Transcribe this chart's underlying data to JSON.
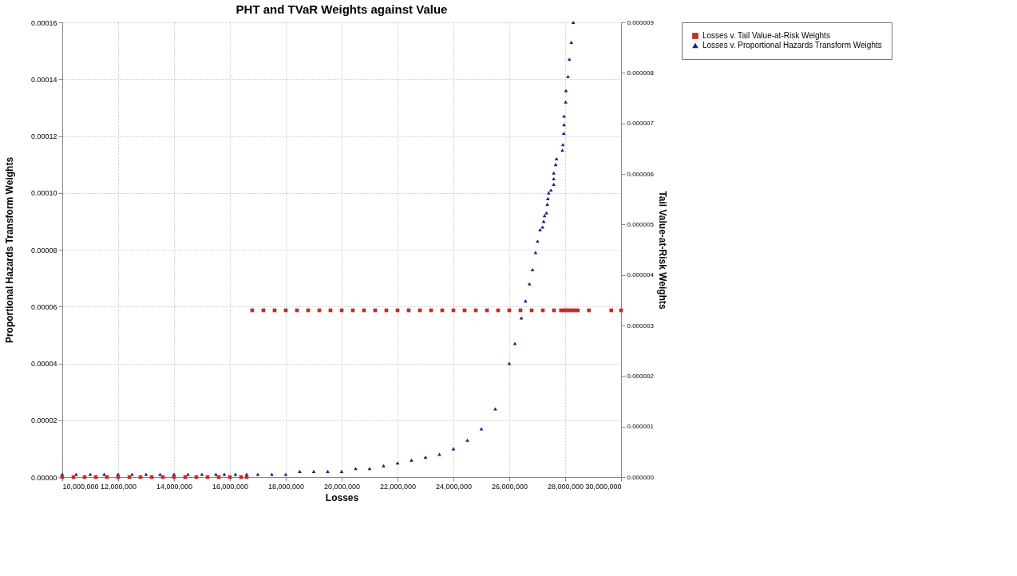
{
  "chart_data": {
    "type": "scatter",
    "title": "PHT and TVaR Weights against Value",
    "xlabel": "Losses",
    "ylabel": "Proportional Hazards Transform Weights",
    "y2label": "Tail Value-at-Risk Weights",
    "xlim": [
      10000000,
      30000000
    ],
    "xticks": [
      {
        "value": 10000000,
        "label": "10,000,000"
      },
      {
        "value": 12000000,
        "label": "12,000,000"
      },
      {
        "value": 14000000,
        "label": "14,000,000"
      },
      {
        "value": 16000000,
        "label": "16,000,000"
      },
      {
        "value": 18000000,
        "label": "18,000,000"
      },
      {
        "value": 20000000,
        "label": "20,000,000"
      },
      {
        "value": 22000000,
        "label": "22,000,000"
      },
      {
        "value": 24000000,
        "label": "24,000,000"
      },
      {
        "value": 26000000,
        "label": "26,000,000"
      },
      {
        "value": 28000000,
        "label": "28,000,000"
      },
      {
        "value": 30000000,
        "label": "30,000,000"
      }
    ],
    "ylim": [
      0,
      0.00016
    ],
    "yticks": [
      {
        "value": 0,
        "label": "0.00000"
      },
      {
        "value": 2e-05,
        "label": "0.00002"
      },
      {
        "value": 4e-05,
        "label": "0.00004"
      },
      {
        "value": 6e-05,
        "label": "0.00006"
      },
      {
        "value": 8e-05,
        "label": "0.00008"
      },
      {
        "value": 0.0001,
        "label": "0.00010"
      },
      {
        "value": 0.00012,
        "label": "0.00012"
      },
      {
        "value": 0.00014,
        "label": "0.00014"
      },
      {
        "value": 0.00016,
        "label": "0.00016"
      }
    ],
    "y2lim": [
      0,
      9e-06
    ],
    "y2ticks": [
      {
        "value": 0,
        "label": "0.000000"
      },
      {
        "value": 1e-06,
        "label": "0.000001"
      },
      {
        "value": 2e-06,
        "label": "0.000002"
      },
      {
        "value": 3e-06,
        "label": "0.000003"
      },
      {
        "value": 4e-06,
        "label": "0.000004"
      },
      {
        "value": 5e-06,
        "label": "0.000005"
      },
      {
        "value": 6e-06,
        "label": "0.000006"
      },
      {
        "value": 7e-06,
        "label": "0.000007"
      },
      {
        "value": 8e-06,
        "label": "0.000008"
      },
      {
        "value": 9e-06,
        "label": "0.000009"
      }
    ],
    "grid": true,
    "legend": "right",
    "series": [
      {
        "name": "Losses v. Tail Value-at-Risk Weights",
        "color": "#c0302a",
        "marker": "square",
        "axis": "y2",
        "x": [
          10000000,
          10400000,
          10800000,
          11200000,
          11600000,
          12000000,
          12400000,
          12800000,
          13200000,
          13600000,
          14000000,
          14400000,
          14800000,
          15200000,
          15600000,
          16000000,
          16400000,
          16600000,
          16800000,
          17200000,
          17600000,
          18000000,
          18400000,
          18800000,
          19200000,
          19600000,
          20000000,
          20400000,
          20800000,
          21200000,
          21600000,
          22000000,
          22400000,
          22800000,
          23200000,
          23600000,
          24000000,
          24400000,
          24800000,
          25200000,
          25600000,
          26000000,
          26400000,
          26800000,
          27200000,
          27600000,
          27850000,
          27950000,
          28050000,
          28150000,
          28250000,
          28350000,
          28450000,
          28850000,
          29650000,
          30000000
        ],
        "values": [
          0,
          0,
          0,
          0,
          0,
          0,
          0,
          0,
          0,
          0,
          0,
          0,
          0,
          0,
          0,
          0,
          0,
          0,
          3.3e-06,
          3.3e-06,
          3.3e-06,
          3.3e-06,
          3.3e-06,
          3.3e-06,
          3.3e-06,
          3.3e-06,
          3.3e-06,
          3.3e-06,
          3.3e-06,
          3.3e-06,
          3.3e-06,
          3.3e-06,
          3.3e-06,
          3.3e-06,
          3.3e-06,
          3.3e-06,
          3.3e-06,
          3.3e-06,
          3.3e-06,
          3.3e-06,
          3.3e-06,
          3.3e-06,
          3.3e-06,
          3.3e-06,
          3.3e-06,
          3.3e-06,
          3.3e-06,
          3.3e-06,
          3.3e-06,
          3.3e-06,
          3.3e-06,
          3.3e-06,
          3.3e-06,
          3.3e-06,
          3.3e-06,
          3.3e-06
        ]
      },
      {
        "name": "Losses v. Proportional Hazards Transform Weights",
        "color": "#1c1c8c",
        "marker": "triangle",
        "x": [
          10000000,
          10500000,
          11000000,
          11500000,
          12000000,
          12500000,
          13000000,
          13500000,
          14000000,
          14500000,
          15000000,
          15500000,
          15800000,
          16200000,
          16600000,
          17000000,
          17500000,
          18000000,
          18500000,
          19000000,
          19500000,
          20000000,
          20500000,
          21000000,
          21500000,
          22000000,
          22500000,
          23000000,
          23500000,
          24000000,
          24500000,
          25000000,
          25500000,
          26000000,
          26200000,
          26430000,
          26580000,
          26720000,
          26830000,
          26940000,
          27010000,
          27100000,
          27190000,
          27230000,
          27260000,
          27330000,
          27360000,
          27380000,
          27410000,
          27490000,
          27590000,
          27590000,
          27590000,
          27660000,
          27690000,
          27900000,
          27920000,
          27950000,
          27960000,
          27960000,
          28020000,
          28030000,
          28100000,
          28150000,
          28220000,
          28290000
        ],
        "values": [
          1e-06,
          1e-06,
          1e-06,
          1e-06,
          1e-06,
          1e-06,
          1e-06,
          1e-06,
          1e-06,
          1e-06,
          1e-06,
          1e-06,
          1e-06,
          1e-06,
          1e-06,
          1e-06,
          1e-06,
          1e-06,
          2e-06,
          2e-06,
          2e-06,
          2e-06,
          3e-06,
          3e-06,
          4e-06,
          5e-06,
          6e-06,
          7e-06,
          8e-06,
          1e-05,
          1.3e-05,
          1.7e-05,
          2.4e-05,
          4e-05,
          4.7e-05,
          5.6e-05,
          6.2e-05,
          6.8e-05,
          7.3e-05,
          7.9e-05,
          8.3e-05,
          8.7e-05,
          8.8e-05,
          9e-05,
          9.2e-05,
          9.3e-05,
          9.6e-05,
          9.8e-05,
          0.0001,
          0.000101,
          0.000103,
          0.000105,
          0.000107,
          0.00011,
          0.000112,
          0.000115,
          0.000117,
          0.000121,
          0.000124,
          0.000127,
          0.000132,
          0.000136,
          0.000141,
          0.000147,
          0.000153,
          0.00016
        ]
      }
    ]
  }
}
